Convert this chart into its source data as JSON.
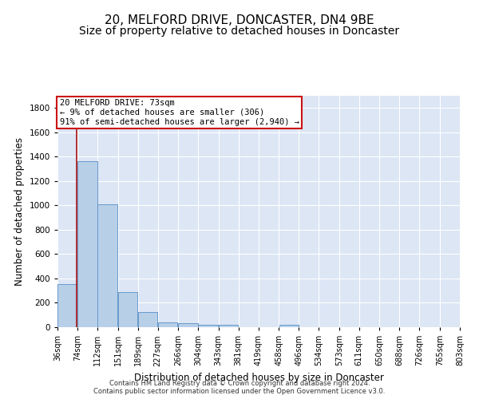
{
  "title": "20, MELFORD DRIVE, DONCASTER, DN4 9BE",
  "subtitle": "Size of property relative to detached houses in Doncaster",
  "xlabel": "Distribution of detached houses by size in Doncaster",
  "ylabel": "Number of detached properties",
  "bar_edges": [
    36,
    74,
    112,
    151,
    189,
    227,
    266,
    304,
    343,
    381,
    419,
    458,
    496,
    534,
    573,
    611,
    650,
    688,
    726,
    765,
    803
  ],
  "bar_values": [
    355,
    1365,
    1010,
    290,
    125,
    40,
    35,
    22,
    18,
    0,
    0,
    20,
    0,
    0,
    0,
    0,
    0,
    0,
    0,
    0
  ],
  "bar_color": "#b8cfe8",
  "bar_edge_color": "#6699cc",
  "property_sqm": 73,
  "vline_color": "#aa1111",
  "annotation_line1": "20 MELFORD DRIVE: 73sqm",
  "annotation_line2": "← 9% of detached houses are smaller (306)",
  "annotation_line3": "91% of semi-detached houses are larger (2,940) →",
  "annotation_box_color": "#cc1111",
  "ylim": [
    0,
    1900
  ],
  "yticks": [
    0,
    200,
    400,
    600,
    800,
    1000,
    1200,
    1400,
    1600,
    1800
  ],
  "tick_labels": [
    "36sqm",
    "74sqm",
    "112sqm",
    "151sqm",
    "189sqm",
    "227sqm",
    "266sqm",
    "304sqm",
    "343sqm",
    "381sqm",
    "419sqm",
    "458sqm",
    "496sqm",
    "534sqm",
    "573sqm",
    "611sqm",
    "650sqm",
    "688sqm",
    "726sqm",
    "765sqm",
    "803sqm"
  ],
  "bg_color": "#dce6f5",
  "footer_text": "Contains HM Land Registry data © Crown copyright and database right 2024.\nContains public sector information licensed under the Open Government Licence v3.0.",
  "grid_color": "#ffffff",
  "title_fontsize": 11,
  "subtitle_fontsize": 10,
  "axis_label_fontsize": 8.5,
  "tick_fontsize": 7,
  "annotation_fontsize": 7.5
}
